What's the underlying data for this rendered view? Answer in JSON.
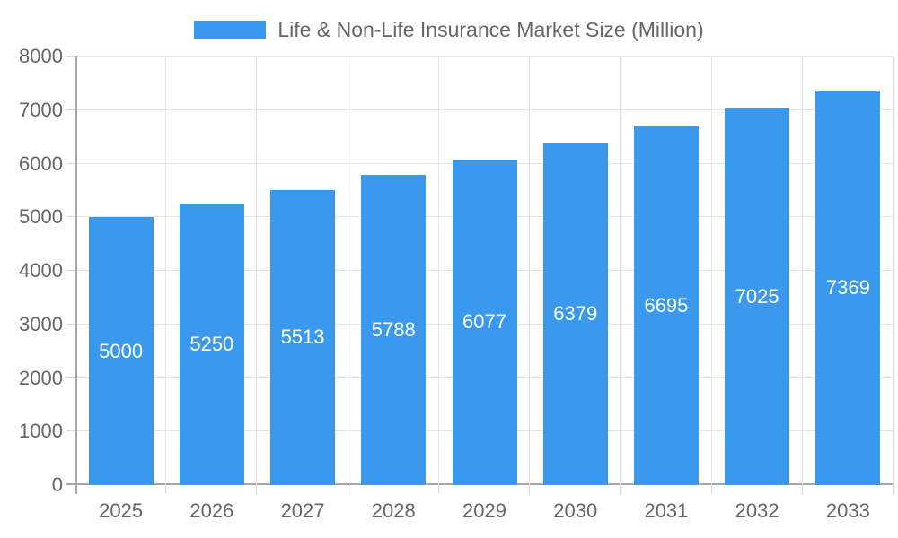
{
  "chart_data": {
    "type": "bar",
    "title": "Life & Non-Life Insurance Market Size (Million)",
    "categories": [
      "2025",
      "2026",
      "2027",
      "2028",
      "2029",
      "2030",
      "2031",
      "2032",
      "2033"
    ],
    "values": [
      5000,
      5250,
      5513,
      5788,
      6077,
      6379,
      6695,
      7025,
      7369
    ],
    "xlabel": "",
    "ylabel": "",
    "ylim": [
      0,
      8000
    ],
    "yticks": [
      0,
      1000,
      2000,
      3000,
      4000,
      5000,
      6000,
      7000,
      8000
    ],
    "legend_position": "top",
    "grid": true,
    "value_labels": "centered-inside-bars-white",
    "colors": {
      "bar": "#3a99ec",
      "bar_value_label": "#ffffff",
      "axis_text": "#666666",
      "gridline": "#e5e5e5",
      "axis_line": "#a6a6a6",
      "tick_mark": "#d9d9d9",
      "background": "#ffffff"
    }
  }
}
